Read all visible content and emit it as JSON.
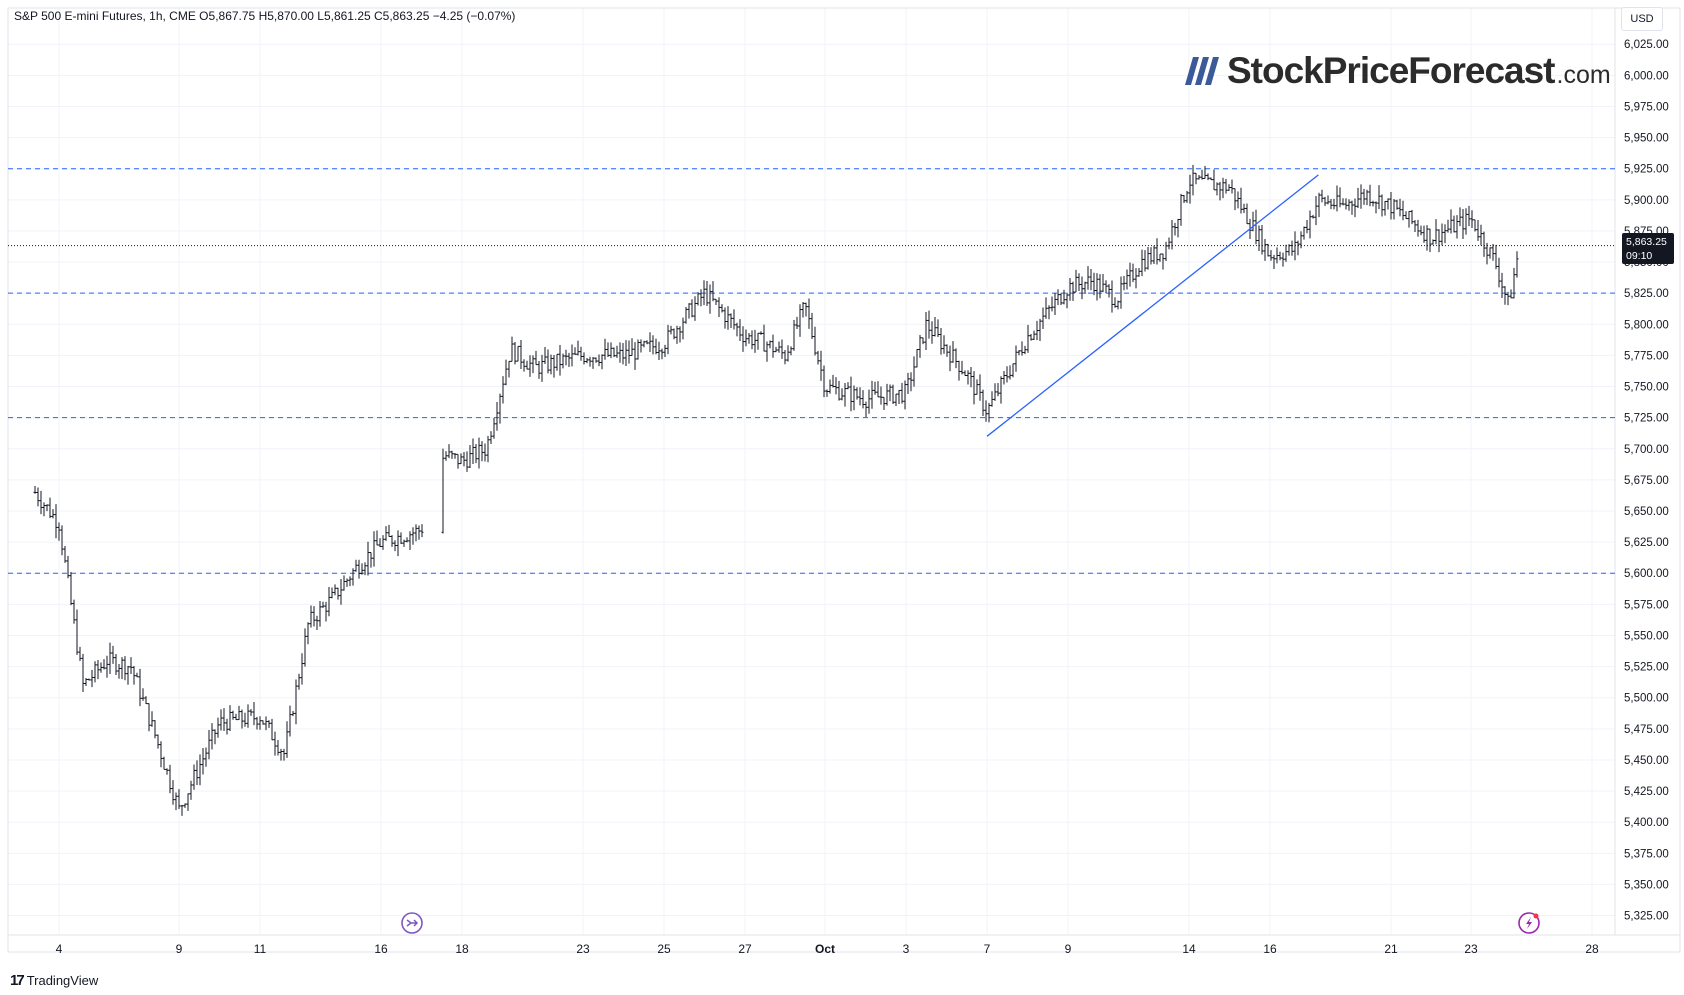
{
  "header": {
    "ohlc_text": "S&P 500 E-mini Futures, 1h, CME  O5,867.75  H5,870.00  L5,861.25  C5,863.25  −4.25 (−0.07%)"
  },
  "currency": "USD",
  "watermark": {
    "main": "StockPriceForecast",
    "tld": ".com",
    "mark": "////"
  },
  "footer": {
    "brand": "TradingView",
    "logo": "17"
  },
  "last_price": {
    "value": "5,863.25",
    "countdown": "09:10"
  },
  "icons": {
    "replay": "forward-arrow-icon",
    "flash": "lightning-icon"
  },
  "colors": {
    "candles": "#131722",
    "level_lines": "#2962ff",
    "trendline": "#2962ff",
    "price_line": "#131722"
  },
  "chart_data": {
    "type": "line",
    "title": "S&P 500 E-mini Futures, 1h, CME",
    "x_tick_labels": [
      "4",
      "9",
      "11",
      "16",
      "18",
      "23",
      "25",
      "27",
      "Oct",
      "3",
      "7",
      "9",
      "14",
      "16",
      "21",
      "23",
      "28"
    ],
    "y_tick_labels": [
      "6,025.00",
      "6,000.00",
      "5,975.00",
      "5,950.00",
      "5,925.00",
      "5,900.00",
      "5,875.00",
      "5,850.00",
      "5,825.00",
      "5,800.00",
      "5,775.00",
      "5,750.00",
      "5,725.00",
      "5,700.00",
      "5,675.00",
      "5,650.00",
      "5,625.00",
      "5,600.00",
      "5,575.00",
      "5,550.00",
      "5,525.00",
      "5,500.00",
      "5,475.00",
      "5,450.00",
      "5,425.00",
      "5,400.00",
      "5,375.00",
      "5,350.00",
      "5,325.00"
    ],
    "ylim": [
      5315,
      6030
    ],
    "horizontal_levels": [
      5925,
      5825,
      5725,
      5600
    ],
    "current_price": 5863.25,
    "trendline": [
      {
        "x": "Oct 7",
        "y": 5710
      },
      {
        "x": "Oct 18",
        "y": 5920
      }
    ],
    "series": [
      {
        "values": [
          [
            "Sep 3",
            5665
          ],
          [
            "Sep 4",
            5640
          ],
          [
            "Sep 5",
            5510
          ],
          [
            "Sep 6",
            5530
          ],
          [
            "Sep 7",
            5525
          ],
          [
            "Sep 8",
            5470
          ],
          [
            "Sep 9",
            5410
          ],
          [
            "Sep 10",
            5480
          ],
          [
            "Sep 11",
            5485
          ],
          [
            "Sep 12",
            5455
          ],
          [
            "Sep 13",
            5560
          ],
          [
            "Sep 14",
            5580
          ],
          [
            "Sep 15",
            5605
          ],
          [
            "Sep 16",
            5625
          ],
          [
            "Sep 17",
            5635
          ],
          [
            "Sep 17",
            5695
          ],
          [
            "Sep 18",
            5690
          ],
          [
            "Sep 19",
            5700
          ],
          [
            "Sep 20",
            5780
          ],
          [
            "Sep 21",
            5765
          ],
          [
            "Sep 22",
            5770
          ],
          [
            "Sep 23",
            5775
          ],
          [
            "Sep 24",
            5775
          ],
          [
            "Sep 25",
            5785
          ],
          [
            "Sep 26",
            5825
          ],
          [
            "Sep 27",
            5790
          ],
          [
            "Sep 28",
            5785
          ],
          [
            "Sep 29",
            5775
          ],
          [
            "Sep 30",
            5815
          ],
          [
            "Oct 1",
            5750
          ],
          [
            "Oct 2",
            5740
          ],
          [
            "Oct 3",
            5745
          ],
          [
            "Oct 4",
            5800
          ],
          [
            "Oct 5",
            5780
          ],
          [
            "Oct 6",
            5760
          ],
          [
            "Oct 7",
            5730
          ],
          [
            "Oct 8",
            5790
          ],
          [
            "Oct 9",
            5830
          ],
          [
            "Oct 10",
            5835
          ],
          [
            "Oct 11",
            5820
          ],
          [
            "Oct 12",
            5850
          ],
          [
            "Oct 13",
            5860
          ],
          [
            "Oct 14",
            5915
          ],
          [
            "Oct 15",
            5910
          ],
          [
            "Oct 16",
            5855
          ],
          [
            "Oct 17",
            5860
          ],
          [
            "Oct 18",
            5900
          ],
          [
            "Oct 19",
            5895
          ],
          [
            "Oct 20",
            5905
          ],
          [
            "Oct 21",
            5895
          ],
          [
            "Oct 22",
            5870
          ],
          [
            "Oct 23",
            5885
          ],
          [
            "Oct 24",
            5850
          ],
          [
            "Oct 24",
            5815
          ],
          [
            "Oct 25",
            5863.25
          ]
        ]
      }
    ]
  }
}
